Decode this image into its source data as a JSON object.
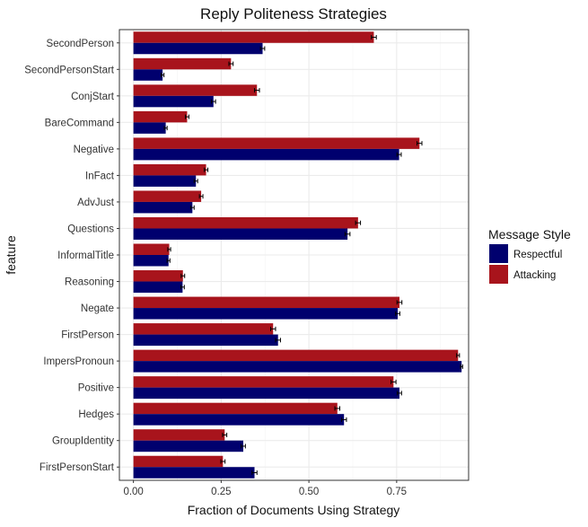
{
  "chart_data": {
    "type": "bar",
    "orientation": "horizontal",
    "title": "Reply Politeness Strategies",
    "xlabel": "Fraction of Documents Using Strategy",
    "ylabel": "feature",
    "xlim": [
      -0.04,
      0.955
    ],
    "xticks": [
      0,
      0.25,
      0.5,
      0.75
    ],
    "xtick_labels": [
      "0.00",
      "0.25",
      "0.50",
      "0.75"
    ],
    "grid": true,
    "legend": {
      "title": "Message Style",
      "placement": "right",
      "entries": [
        {
          "name": "Respectful",
          "color": "#00006e"
        },
        {
          "name": "Attacking",
          "color": "#a8141c"
        }
      ]
    },
    "categories": [
      "SecondPerson",
      "SecondPersonStart",
      "ConjStart",
      "BareCommand",
      "Negative",
      "InFact",
      "AdvJust",
      "Questions",
      "InformalTitle",
      "Reasoning",
      "Negate",
      "FirstPerson",
      "ImpersPronoun",
      "Positive",
      "Hedges",
      "GroupIdentity",
      "FirstPersonStart"
    ],
    "series": [
      {
        "name": "Attacking",
        "color": "#a8141c",
        "values": [
          0.685,
          0.278,
          0.352,
          0.153,
          0.815,
          0.207,
          0.193,
          0.64,
          0.102,
          0.141,
          0.758,
          0.398,
          0.925,
          0.741,
          0.581,
          0.26,
          0.255
        ],
        "errors": [
          0.007,
          0.006,
          0.007,
          0.005,
          0.007,
          0.005,
          0.005,
          0.007,
          0.004,
          0.005,
          0.007,
          0.007,
          0.004,
          0.007,
          0.007,
          0.006,
          0.006
        ]
      },
      {
        "name": "Respectful",
        "color": "#00006e",
        "values": [
          0.368,
          0.083,
          0.228,
          0.092,
          0.757,
          0.178,
          0.168,
          0.61,
          0.1,
          0.14,
          0.753,
          0.412,
          0.935,
          0.758,
          0.6,
          0.313,
          0.345
        ],
        "errors": [
          0.006,
          0.004,
          0.006,
          0.004,
          0.006,
          0.005,
          0.005,
          0.007,
          0.004,
          0.005,
          0.006,
          0.007,
          0.003,
          0.006,
          0.007,
          0.006,
          0.007
        ]
      }
    ]
  }
}
